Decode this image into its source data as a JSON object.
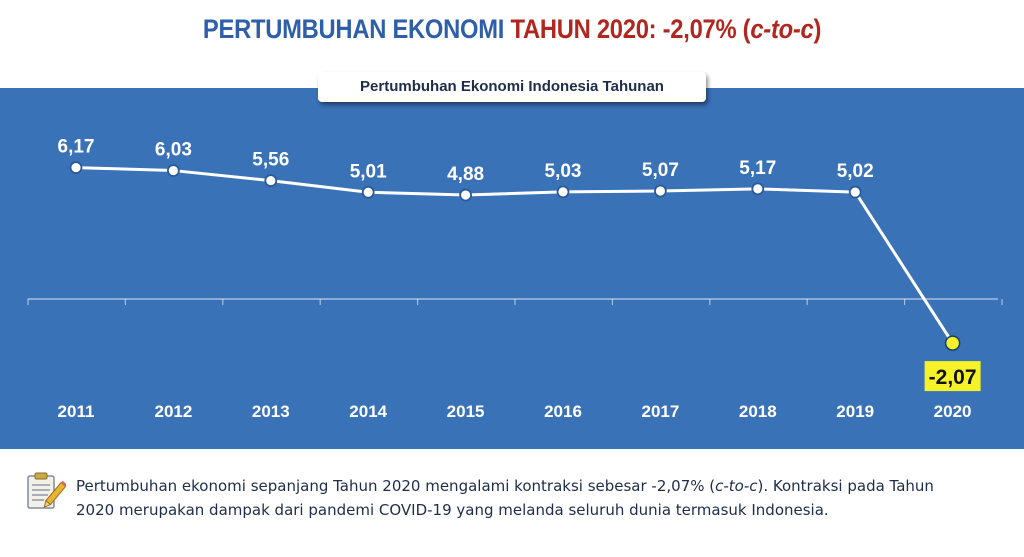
{
  "header": {
    "title_part1": "PERTUMBUHAN EKONOMI ",
    "title_part2": "TAHUN 2020: -2,07% (",
    "title_part3": "c-to-c",
    "title_part4": ")"
  },
  "colors": {
    "panel_bg": "#3a72b7",
    "line": "#ffffff",
    "highlight_fill": "#f5f22a",
    "title_blue": "#2e5fa8",
    "title_red": "#b0271f"
  },
  "chart_data": {
    "type": "line",
    "title": "Pertumbuhan Ekonomi Indonesia Tahunan",
    "categories": [
      "2011",
      "2012",
      "2013",
      "2014",
      "2015",
      "2016",
      "2017",
      "2018",
      "2019",
      "2020"
    ],
    "values": [
      6.17,
      6.03,
      5.56,
      5.01,
      4.88,
      5.03,
      5.07,
      5.17,
      5.02,
      -2.07
    ],
    "value_labels": [
      "6,17",
      "6,03",
      "5,56",
      "5,01",
      "4,88",
      "5,03",
      "5,07",
      "5,17",
      "5,02",
      "-2,07"
    ],
    "highlight_index": 9,
    "ylim": [
      -2.5,
      6.5
    ],
    "xlabel": "",
    "ylabel": "",
    "grid": false,
    "legend": "none"
  },
  "note": {
    "text_a": "Pertumbuhan ekonomi sepanjang Tahun 2020 mengalami kontraksi sebesar -2,07% (",
    "text_b": "c-to-c",
    "text_c": "). Kontraksi pada Tahun 2020 merupakan dampak dari pandemi COVID-19 yang melanda seluruh dunia termasuk Indonesia.",
    "icon": "notepad-pencil-icon"
  }
}
